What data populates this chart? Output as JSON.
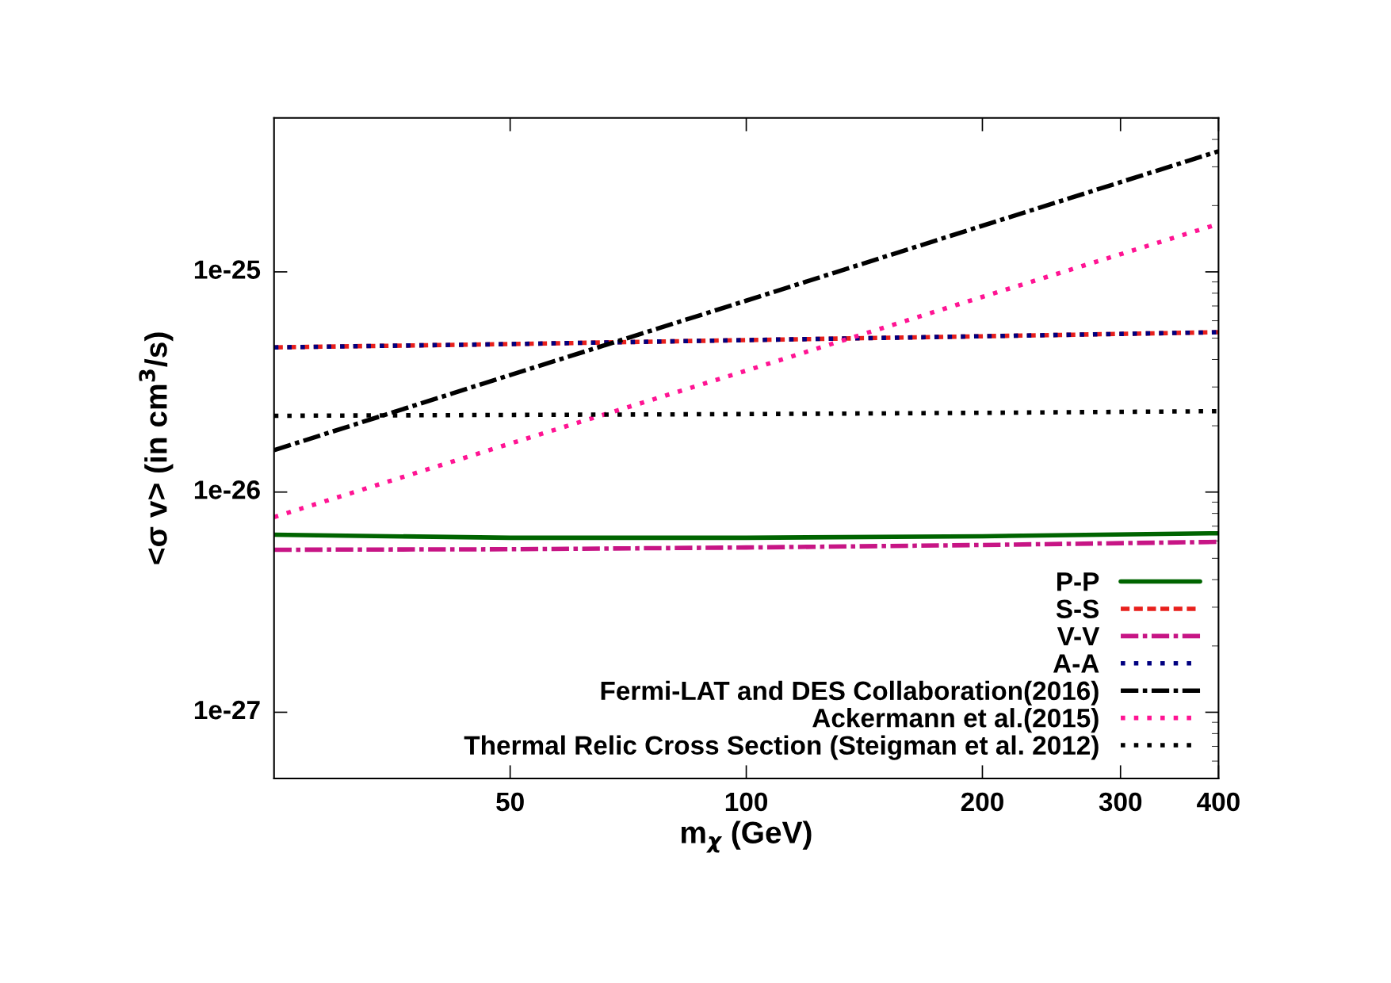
{
  "chart_data": {
    "type": "line",
    "xlabel": "m$_{χ}$ (GeV)",
    "ylabel": "<σ v> (in cm$^{3}$/s)",
    "log": "xy",
    "xlim": [
      25,
      400
    ],
    "ylim": [
      5e-28,
      5e-25
    ],
    "xticks": [
      50,
      100,
      200,
      300,
      400
    ],
    "yticks": [
      {
        "value": 1e-27,
        "label": "1e-27"
      },
      {
        "value": 1e-26,
        "label": "1e-26"
      },
      {
        "value": 1e-25,
        "label": "1e-25"
      }
    ],
    "grid": false,
    "legend": "bottom right",
    "marker": "none",
    "x": [
      25,
      50,
      100,
      200,
      400
    ],
    "series": [
      {
        "name": "P-P",
        "color": "#006400",
        "line_style": "solid",
        "values": [
          6.4e-27,
          6.2e-27,
          6.2e-27,
          6.3e-27,
          6.5e-27
        ]
      },
      {
        "name": "S-S",
        "color": "#e8201c",
        "line_style": "dashed",
        "values": [
          4.54e-26,
          4.7e-26,
          4.9e-26,
          5.1e-26,
          5.32e-26
        ]
      },
      {
        "name": "V-V",
        "color": "#c71585",
        "line_style": "dashdot",
        "values": [
          5.47e-27,
          5.5e-27,
          5.6e-27,
          5.75e-27,
          5.94e-27
        ]
      },
      {
        "name": "A-A",
        "color": "#000080",
        "line_style": "dotted",
        "values": [
          4.54e-26,
          4.7e-26,
          4.9e-26,
          5.1e-26,
          5.32e-26
        ]
      },
      {
        "name": "Fermi-LAT and DES Collaboration(2016)",
        "color": "#000000",
        "line_style": "dashdot",
        "values": [
          1.55e-26,
          3.4e-26,
          7.4e-26,
          1.62e-25,
          3.53e-25
        ]
      },
      {
        "name": "Ackermann et al.(2015)",
        "color": "#ff1493",
        "line_style": "dotted",
        "values": [
          7.7e-27,
          1.66e-26,
          3.56e-26,
          7.7e-26,
          1.65e-25
        ]
      },
      {
        "name": "Thermal Relic Cross Section (Steigman et al. 2012)",
        "color": "#000000",
        "line_style": "dotted",
        "values": [
          2.22e-26,
          2.24e-26,
          2.26e-26,
          2.29e-26,
          2.33e-26
        ]
      }
    ]
  }
}
